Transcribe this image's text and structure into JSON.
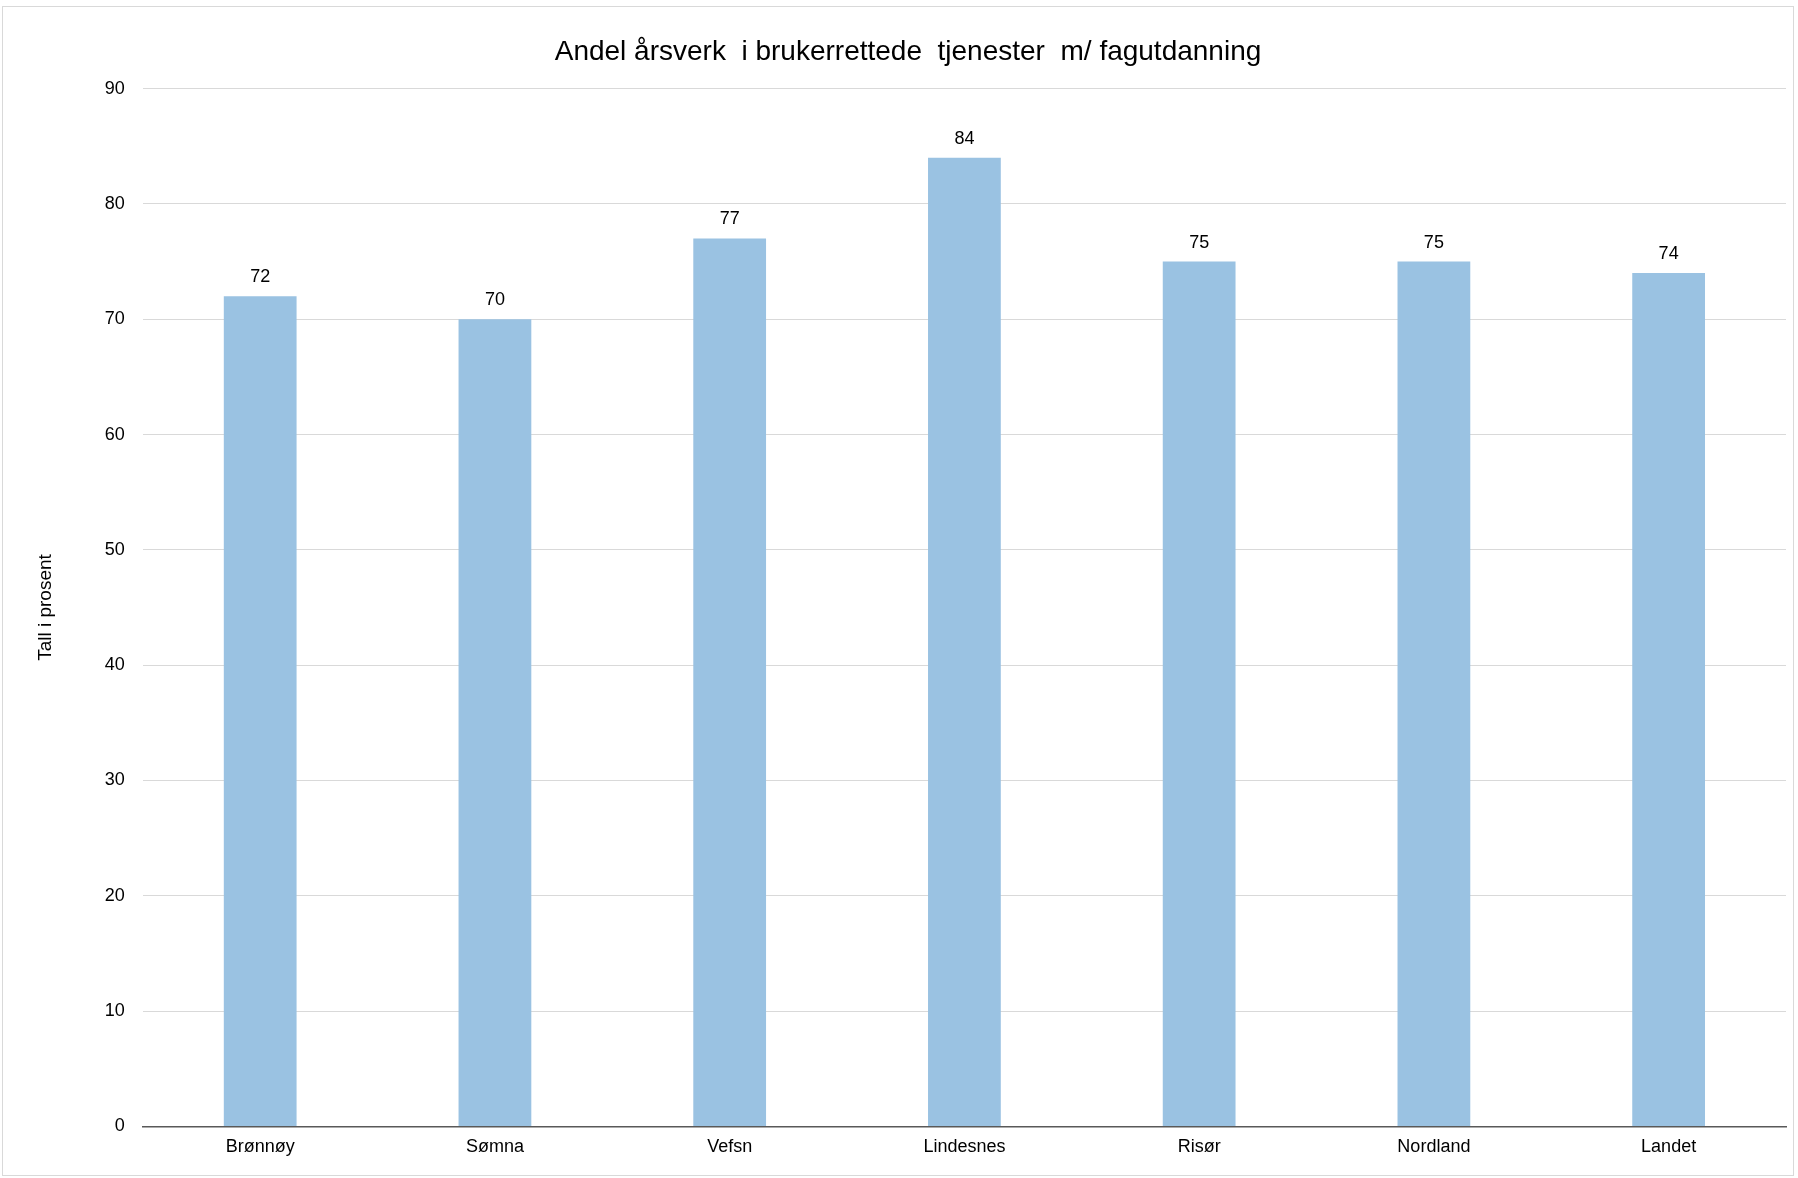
{
  "chart_data": {
    "type": "bar",
    "title": "Andel årsverk  i brukerrettede  tjenester  m/ fagutdanning",
    "ylabel": "Tall i prosent",
    "categories": [
      "Brønnøy",
      "Sømna",
      "Vefsn",
      "Lindesnes",
      "Risør",
      "Nordland",
      "Landet"
    ],
    "values": [
      72,
      70,
      77,
      84,
      75,
      75,
      74
    ],
    "color": "#9ac2e2",
    "ylim": [
      0,
      90
    ],
    "yticks": [
      0,
      10,
      20,
      30,
      40,
      50,
      60,
      70,
      80,
      90
    ],
    "grid": "y",
    "data_labels": true,
    "legend": false
  }
}
